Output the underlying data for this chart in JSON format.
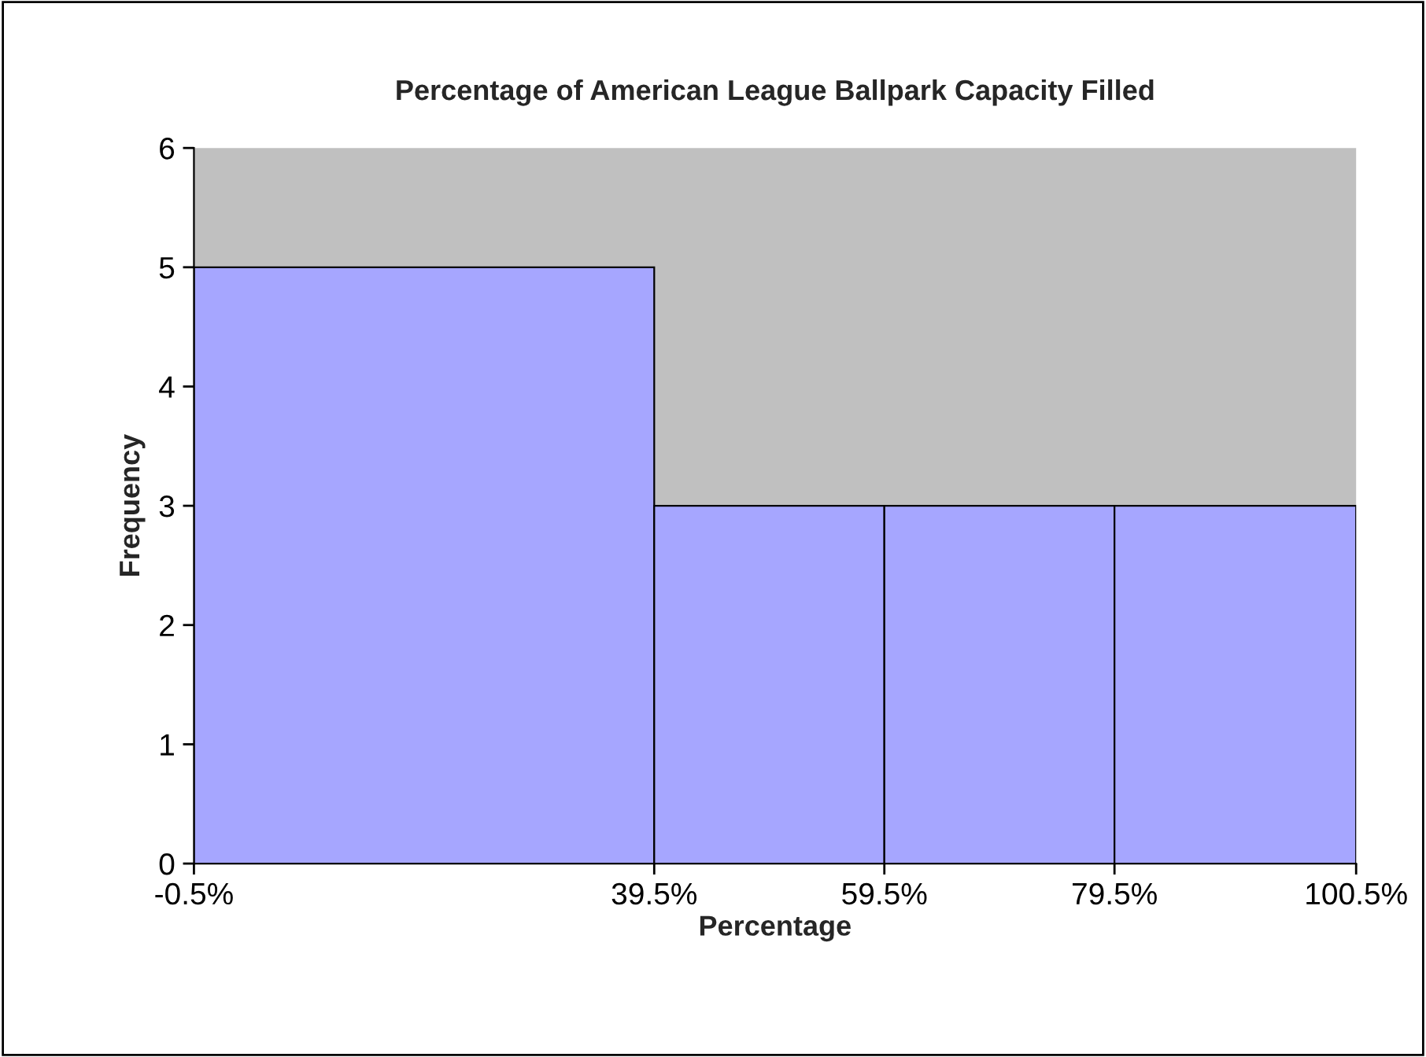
{
  "chart_data": {
    "type": "histogram",
    "title": "Percentage of American League Ballpark Capacity Filled",
    "xlabel": "Percentage",
    "ylabel": "Frequency",
    "bins": [
      -0.5,
      39.5,
      59.5,
      79.5,
      100.5
    ],
    "values": [
      5,
      3,
      3,
      3
    ],
    "color": "#a6a6ff",
    "xlim": [
      -0.5,
      100.5
    ],
    "xticks": [
      {
        "value": -0.5,
        "label": "-0.5%"
      },
      {
        "value": 39.5,
        "label": "39.5%"
      },
      {
        "value": 59.5,
        "label": "59.5%"
      },
      {
        "value": 79.5,
        "label": "79.5%"
      },
      {
        "value": 100.5,
        "label": "100.5%"
      }
    ],
    "ylim": [
      0,
      6
    ],
    "yticks": [
      0,
      1,
      2,
      3,
      4,
      5,
      6
    ],
    "grid": false,
    "legend": false
  }
}
